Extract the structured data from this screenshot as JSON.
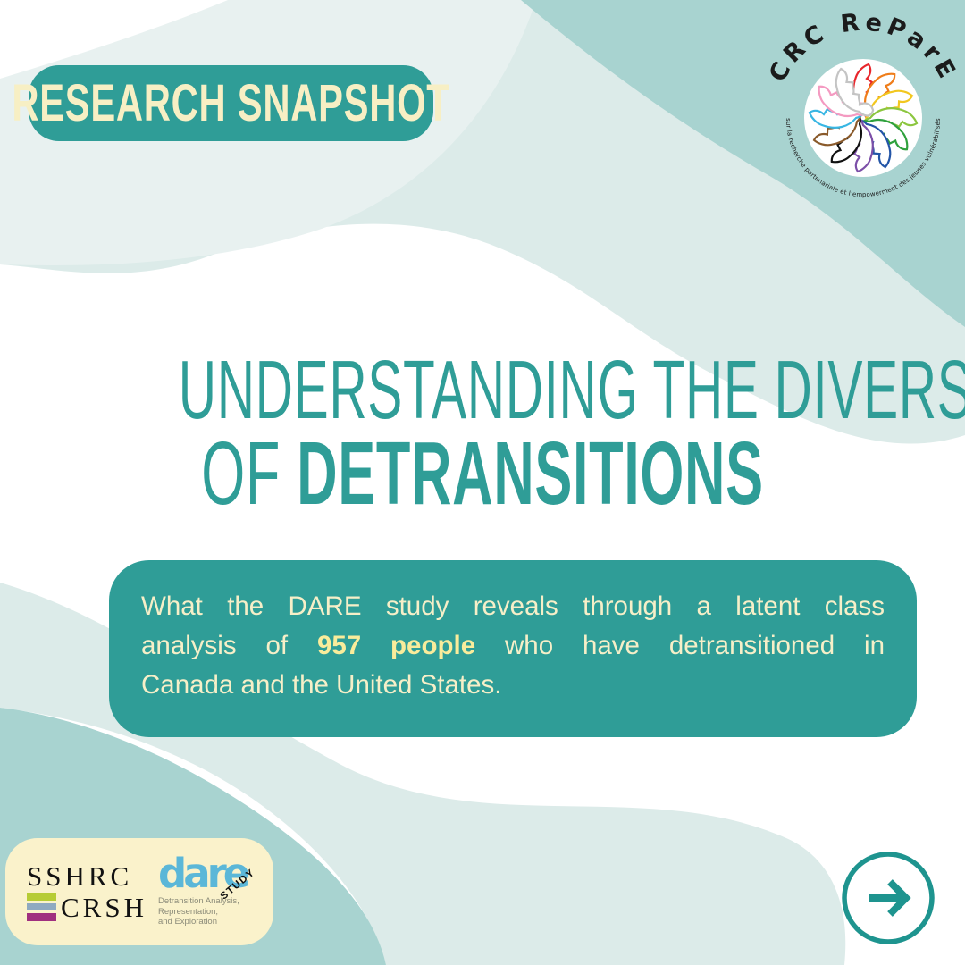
{
  "colors": {
    "teal": "#2F9D97",
    "teal_dark": "#1E948F",
    "bg_teal": "#A8D3D0",
    "bg_pale": "#DCEBE9",
    "bg_extrapale": "#E8F1F0",
    "cream": "#F7EFC4",
    "cream_box": "#FAF2CB",
    "callout_text": "#F6EFC8",
    "bold_yellow": "#F9EC9B",
    "dare_blue": "#5BB7D8",
    "sshrc_bar1": "#B6CC35",
    "sshrc_bar2": "#8FA9C0",
    "sshrc_bar3": "#A0307F",
    "gray_tag": "#8C8C7A"
  },
  "badge": {
    "label": "RESEARCH SNAPSHOT"
  },
  "logo": {
    "title": "CRC ReParE",
    "tagline": "sur la recherche partenariale et l'empowerment des jeunes vulnérabilisés",
    "petal_colors": [
      "#E8262C",
      "#EF7D1A",
      "#F2C71F",
      "#8CC63F",
      "#2FA13D",
      "#2355A7",
      "#7C4FA8",
      "#111111",
      "#8A5A2B",
      "#38B6E3",
      "#F49AC1",
      "#C4C4C4"
    ]
  },
  "heading": {
    "line1": "UNDERSTANDING THE DIVERSITY",
    "line2_prefix": "OF ",
    "line2_bold": "DETRANSITIONS"
  },
  "subtitle": {
    "line1": "What the DARE study reveals through a latent class",
    "line2_pre": "analysis of ",
    "line2_bold": "957 people",
    "line2_post": " who have detransitioned in",
    "line3": "Canada and the United States."
  },
  "footer": {
    "sshrc": {
      "line1": "SSHRC",
      "line2": "CRSH"
    },
    "dare": {
      "wordmark": "dare",
      "study": "STUDY",
      "tagline_lines": [
        "Detransition Analysis,",
        "Representation,",
        "and Exploration"
      ]
    }
  },
  "next_button": {
    "icon": "arrow-right"
  }
}
